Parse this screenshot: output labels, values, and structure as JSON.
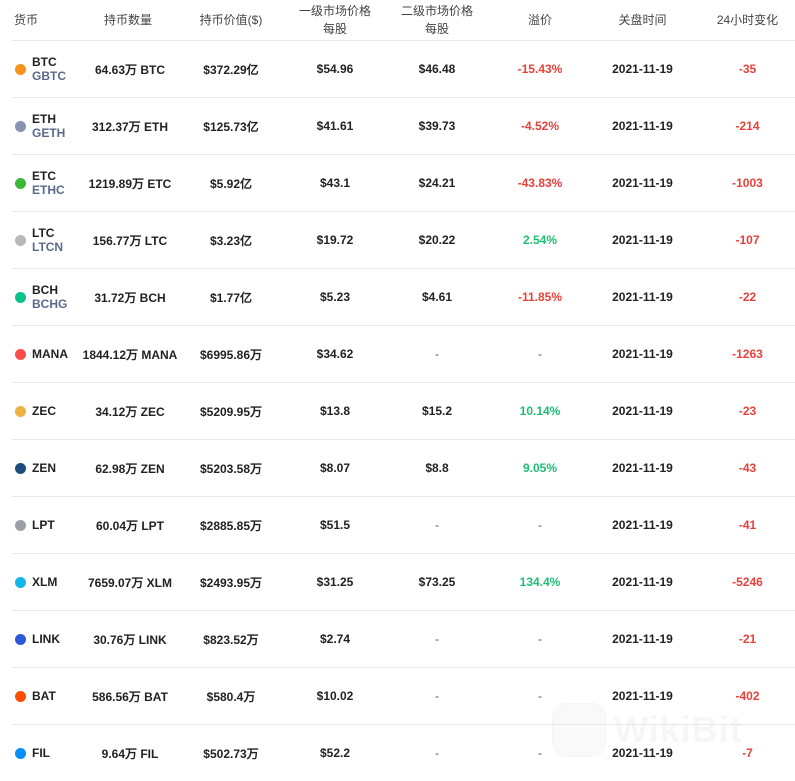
{
  "header": {
    "coin": "货币",
    "holdings_amount": "持币数量",
    "holdings_value": "持币价值($)",
    "primary_price_l1": "一级市场价格",
    "primary_price_l2": "每股",
    "secondary_price_l1": "二级市场价格",
    "secondary_price_l2": "每股",
    "premium": "溢价",
    "close_time": "关盘时间",
    "change_24h": "24小时变化"
  },
  "rows": [
    {
      "symbol": "BTC",
      "trust": "GBTC",
      "amount": "64.63万 BTC",
      "value": "$372.29亿",
      "primary": "$54.96",
      "secondary": "$46.48",
      "premium": "-15.43%",
      "premium_sign": "neg",
      "date": "2021-11-19",
      "change": "-35",
      "icon_color": "#f7931a",
      "icon": "bitcoin-icon"
    },
    {
      "symbol": "ETH",
      "trust": "GETH",
      "amount": "312.37万 ETH",
      "value": "$125.73亿",
      "primary": "$41.61",
      "secondary": "$39.73",
      "premium": "-4.52%",
      "premium_sign": "neg",
      "date": "2021-11-19",
      "change": "-214",
      "icon_color": "#8a92b2",
      "icon": "ethereum-icon"
    },
    {
      "symbol": "ETC",
      "trust": "ETHC",
      "amount": "1219.89万 ETC",
      "value": "$5.92亿",
      "primary": "$43.1",
      "secondary": "$24.21",
      "premium": "-43.83%",
      "premium_sign": "neg",
      "date": "2021-11-19",
      "change": "-1003",
      "icon_color": "#3ab83a",
      "icon": "ethereum-classic-icon"
    },
    {
      "symbol": "LTC",
      "trust": "LTCN",
      "amount": "156.77万 LTC",
      "value": "$3.23亿",
      "primary": "$19.72",
      "secondary": "$20.22",
      "premium": "2.54%",
      "premium_sign": "pos",
      "date": "2021-11-19",
      "change": "-107",
      "icon_color": "#b8b8b8",
      "icon": "litecoin-icon"
    },
    {
      "symbol": "BCH",
      "trust": "BCHG",
      "amount": "31.72万 BCH",
      "value": "$1.77亿",
      "primary": "$5.23",
      "secondary": "$4.61",
      "premium": "-11.85%",
      "premium_sign": "neg",
      "date": "2021-11-19",
      "change": "-22",
      "icon_color": "#0ac18e",
      "icon": "bitcoin-cash-icon"
    },
    {
      "symbol": "MANA",
      "trust": "",
      "amount": "1844.12万 MANA",
      "value": "$6995.86万",
      "primary": "$34.62",
      "secondary": "-",
      "premium": "-",
      "premium_sign": "none",
      "date": "2021-11-19",
      "change": "-1263",
      "icon_color": "#ff4d4d",
      "icon": "decentraland-icon"
    },
    {
      "symbol": "ZEC",
      "trust": "",
      "amount": "34.12万 ZEC",
      "value": "$5209.95万",
      "primary": "$13.8",
      "secondary": "$15.2",
      "premium": "10.14%",
      "premium_sign": "pos",
      "date": "2021-11-19",
      "change": "-23",
      "icon_color": "#ecb244",
      "icon": "zcash-icon"
    },
    {
      "symbol": "ZEN",
      "trust": "",
      "amount": "62.98万 ZEN",
      "value": "$5203.58万",
      "primary": "$8.07",
      "secondary": "$8.8",
      "premium": "9.05%",
      "premium_sign": "pos",
      "date": "2021-11-19",
      "change": "-43",
      "icon_color": "#1d4d7a",
      "icon": "horizen-icon"
    },
    {
      "symbol": "LPT",
      "trust": "",
      "amount": "60.04万 LPT",
      "value": "$2885.85万",
      "primary": "$51.5",
      "secondary": "-",
      "premium": "-",
      "premium_sign": "none",
      "date": "2021-11-19",
      "change": "-41",
      "icon_color": "#9aa0a6",
      "icon": "livepeer-icon"
    },
    {
      "symbol": "XLM",
      "trust": "",
      "amount": "7659.07万 XLM",
      "value": "$2493.95万",
      "primary": "$31.25",
      "secondary": "$73.25",
      "premium": "134.4%",
      "premium_sign": "pos",
      "date": "2021-11-19",
      "change": "-5246",
      "icon_color": "#14b6e7",
      "icon": "stellar-icon"
    },
    {
      "symbol": "LINK",
      "trust": "",
      "amount": "30.76万 LINK",
      "value": "$823.52万",
      "primary": "$2.74",
      "secondary": "-",
      "premium": "-",
      "premium_sign": "none",
      "date": "2021-11-19",
      "change": "-21",
      "icon_color": "#2a5ada",
      "icon": "chainlink-icon"
    },
    {
      "symbol": "BAT",
      "trust": "",
      "amount": "586.56万 BAT",
      "value": "$580.4万",
      "primary": "$10.02",
      "secondary": "-",
      "premium": "-",
      "premium_sign": "none",
      "date": "2021-11-19",
      "change": "-402",
      "icon_color": "#ff5000",
      "icon": "basic-attention-token-icon"
    },
    {
      "symbol": "FIL",
      "trust": "",
      "amount": "9.64万 FIL",
      "value": "$502.73万",
      "primary": "$52.2",
      "secondary": "-",
      "premium": "-",
      "premium_sign": "none",
      "date": "2021-11-19",
      "change": "-7",
      "icon_color": "#0090ff",
      "icon": "filecoin-icon"
    }
  ],
  "watermark": {
    "text": "WikiBit",
    "icon": "wikibit-logo-icon"
  }
}
